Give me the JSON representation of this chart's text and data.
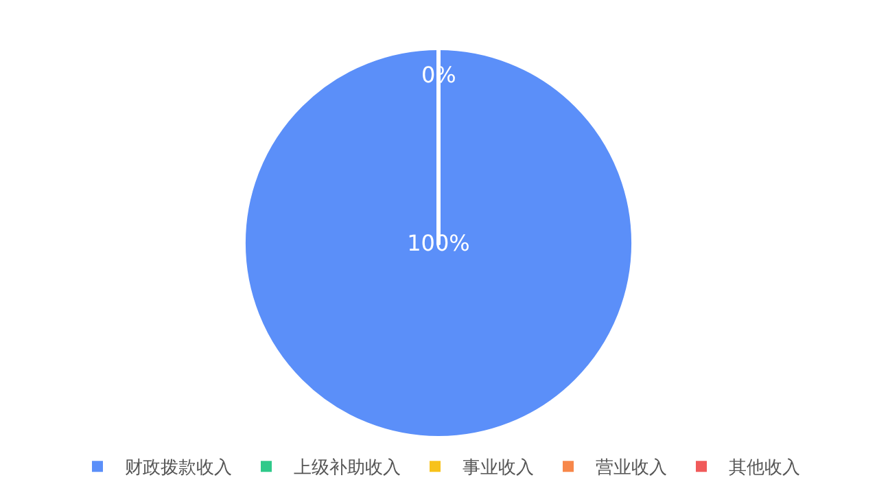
{
  "chart_data": {
    "type": "pie",
    "categories": [
      "财政拨款收入",
      "上级补助收入",
      "事业收入",
      "营业收入",
      "其他收入"
    ],
    "values": [
      100,
      0,
      0,
      0,
      0
    ],
    "colors": [
      "#5b8ff9",
      "#2fc98a",
      "#f7c21b",
      "#f7874a",
      "#f05a5a"
    ],
    "value_labels": [
      "100%",
      "0%",
      null,
      null,
      null
    ],
    "legend": "bottom"
  }
}
